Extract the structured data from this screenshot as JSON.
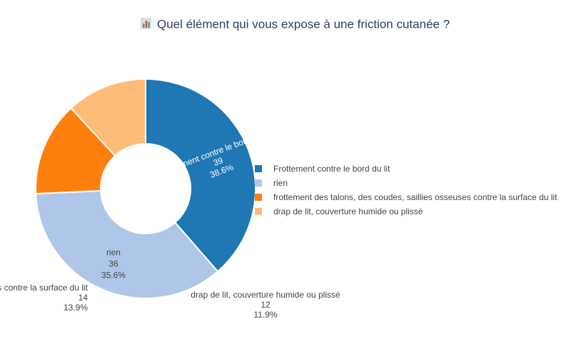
{
  "chart_data": {
    "type": "pie",
    "title": "Quel élément qui vous expose à une friction cutanée ?",
    "title_icon": "bar-chart-icon",
    "hole": true,
    "legend_position": "right",
    "categories": [
      "Frottement contre le bord du lit",
      "rien",
      "frottement des talons, des coudes, saillies osseuses contre la surface du lit",
      "drap de lit, couverture humide ou plissé"
    ],
    "values": [
      39,
      36,
      14,
      12
    ],
    "percent_labels": [
      "38.6%",
      "35.6%",
      "13.9%",
      "11.9%"
    ],
    "colors": [
      "#1f77b4",
      "#aec7e8",
      "#ff7f0e",
      "#ffbb78"
    ],
    "label_colors": [
      "#ffffff",
      "#444444",
      "#444444",
      "#444444"
    ]
  }
}
